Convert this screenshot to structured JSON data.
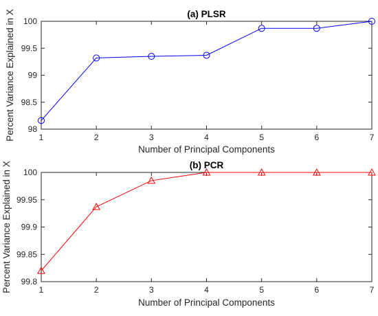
{
  "chart_data": [
    {
      "type": "line",
      "title": "(a) PLSR",
      "xlabel": "Number of Principal Components",
      "ylabel": "Percent Variance Explained in X",
      "x": [
        1,
        2,
        3,
        4,
        5,
        6,
        7
      ],
      "series": [
        {
          "values": [
            98.16,
            99.32,
            99.35,
            99.37,
            99.87,
            99.87,
            100.0
          ],
          "color": "#0000ff",
          "marker": "circle"
        }
      ],
      "xlim": [
        1,
        7
      ],
      "ylim": [
        98,
        100
      ],
      "xticks": [
        "1",
        "2",
        "3",
        "4",
        "5",
        "6",
        "7"
      ],
      "yticks": [
        "98",
        "98.5",
        "99",
        "99.5",
        "100"
      ],
      "ytick_values": [
        98,
        98.5,
        99,
        99.5,
        100
      ],
      "grid": false
    },
    {
      "type": "line",
      "title": "(b) PCR",
      "xlabel": "Number of Principal Components",
      "ylabel": "Percent Variance Explained in X",
      "x": [
        1,
        2,
        3,
        4,
        5,
        6,
        7
      ],
      "series": [
        {
          "values": [
            99.82,
            99.937,
            99.985,
            100.0,
            100.0,
            100.0,
            100.0
          ],
          "color": "#ff0000",
          "marker": "triangle"
        }
      ],
      "xlim": [
        1,
        7
      ],
      "ylim": [
        99.8,
        100
      ],
      "xticks": [
        "1",
        "2",
        "3",
        "4",
        "5",
        "6",
        "7"
      ],
      "yticks": [
        "99.8",
        "99.85",
        "99.9",
        "99.95",
        "100"
      ],
      "ytick_values": [
        99.8,
        99.85,
        99.9,
        99.95,
        100
      ],
      "grid": false
    }
  ]
}
